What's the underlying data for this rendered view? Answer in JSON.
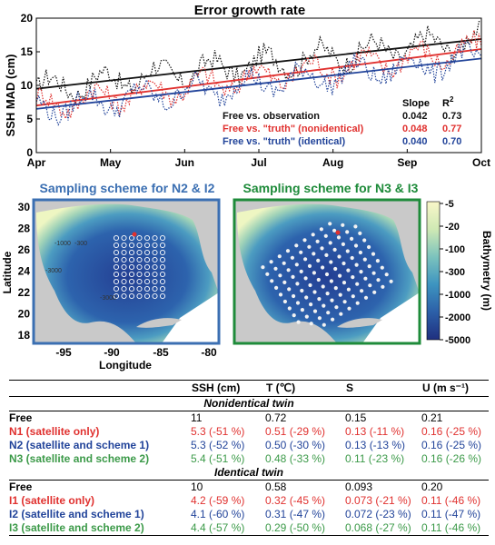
{
  "colors": {
    "black": "#111111",
    "red": "#e0312f",
    "blue": "#22449a",
    "green": "#3c9a49",
    "land": "#c9c9c9",
    "box_blue": "#3b6fb2",
    "box_green": "#1e8b3a"
  },
  "chart_data": {
    "type": "line",
    "title": "Error growth rate",
    "ylabel": "SSH MAD (cm)",
    "xlabel": "",
    "x_ticks": [
      "Apr",
      "May",
      "Jun",
      "Jul",
      "Aug",
      "Sep",
      "Oct"
    ],
    "ylim": [
      0,
      20
    ],
    "y_ticks": [
      0,
      5,
      10,
      15,
      20
    ],
    "series": [
      {
        "name": "Free vs. observation",
        "color": "#111111",
        "trend_start": 9.5,
        "trend_end": 16.9,
        "slope": "0.042",
        "r2": "0.73"
      },
      {
        "name": "Free vs. \"truth\" (nonidentical)",
        "color": "#e0312f",
        "trend_start": 7.0,
        "trend_end": 15.4,
        "slope": "0.048",
        "r2": "0.77"
      },
      {
        "name": "Free vs. \"truth\" (identical)",
        "color": "#22449a",
        "trend_start": 6.5,
        "trend_end": 14.0,
        "slope": "0.040",
        "r2": "0.70"
      }
    ],
    "legend_headers": {
      "slope": "Slope",
      "r2": "R"
    }
  },
  "maps": {
    "left_title": "Sampling scheme for N2 & I2",
    "right_title": "Sampling scheme for N3 & I3",
    "ylabel": "Latitude",
    "xlabel": "Longitude",
    "lat_ticks": [
      "30",
      "28",
      "26",
      "24",
      "22",
      "20",
      "18"
    ],
    "lon_ticks": [
      "-95",
      "-90",
      "-85",
      "-80"
    ],
    "contours": [
      "-1000",
      "-300",
      "-3000",
      "-3000"
    ],
    "colorbar_label": "Bathymetry (m)",
    "colorbar_ticks": [
      "-5",
      "-20",
      "-100",
      "-300",
      "-1000",
      "-2000",
      "-5000"
    ]
  },
  "table": {
    "headers": [
      "",
      "SSH (cm)",
      "T (℃)",
      "S",
      "U (m s⁻¹)"
    ],
    "nonidentical_title": "Nonidentical twin",
    "identical_title": "Identical twin",
    "nonidentical": [
      {
        "label": "Free",
        "ssh": "11",
        "t": "0.72",
        "s": "0.15",
        "u": "0.21",
        "color": "#000000"
      },
      {
        "label": "N1 (satellite only)",
        "ssh": "5.3 (-51 %)",
        "t": "0.51 (-29 %)",
        "s": "0.13 (-11 %)",
        "u": "0.16 (-25 %)",
        "color": "#e0312f"
      },
      {
        "label": "N2 (satellite and scheme 1)",
        "ssh": "5.3 (-52 %)",
        "t": "0.50 (-30 %)",
        "s": "0.13 (-13 %)",
        "u": "0.16 (-25 %)",
        "color": "#22449a"
      },
      {
        "label": "N3 (satellite and scheme 2)",
        "ssh": "5.4 (-51 %)",
        "t": "0.48 (-33 %)",
        "s": "0.11 (-23 %)",
        "u": "0.16 (-26 %)",
        "color": "#3c9a49"
      }
    ],
    "identical": [
      {
        "label": "Free",
        "ssh": "10",
        "t": "0.58",
        "s": "0.093",
        "u": "0.20",
        "color": "#000000"
      },
      {
        "label": "I1 (satellite only)",
        "ssh": "4.2 (-59 %)",
        "t": "0.32 (-45 %)",
        "s": "0.073 (-21 %)",
        "u": "0.11 (-46 %)",
        "color": "#e0312f"
      },
      {
        "label": "I2 (satellite and scheme 1)",
        "ssh": "4.1 (-60 %)",
        "t": "0.31 (-47 %)",
        "s": "0.072 (-23 %)",
        "u": "0.11 (-47 %)",
        "color": "#22449a"
      },
      {
        "label": "I3 (satellite and scheme 2)",
        "ssh": "4.4 (-57 %)",
        "t": "0.29 (-50 %)",
        "s": "0.068 (-27 %)",
        "u": "0.11 (-46 %)",
        "color": "#3c9a49"
      }
    ]
  }
}
